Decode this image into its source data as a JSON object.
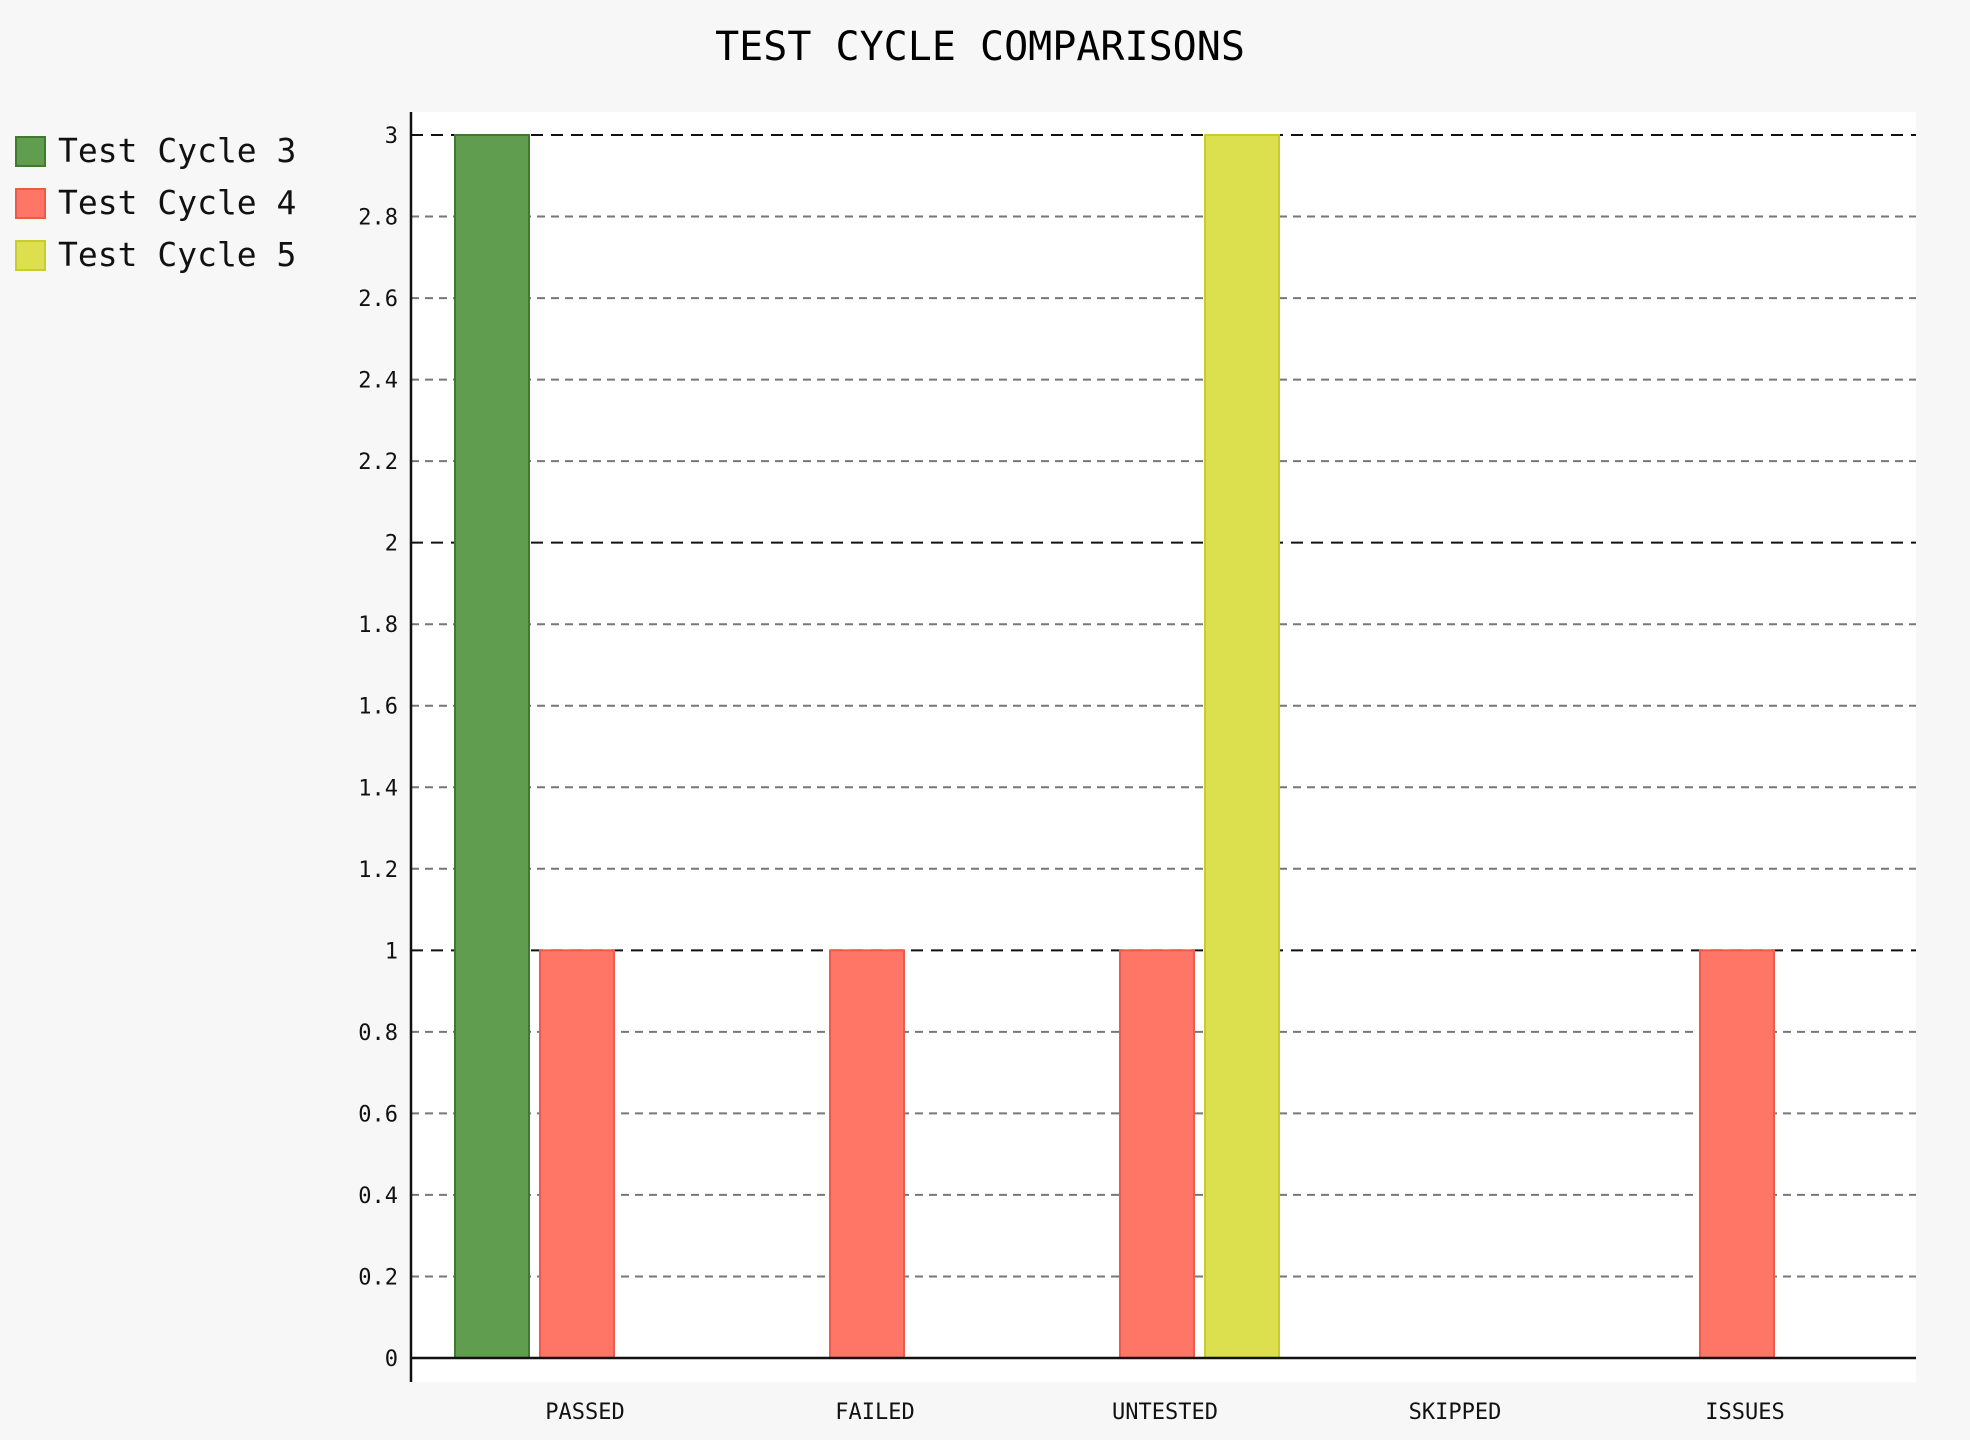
{
  "chart_data": {
    "type": "bar",
    "title": "TEST CYCLE COMPARISONS",
    "xlabel": "",
    "ylabel": "",
    "categories": [
      "PASSED",
      "FAILED",
      "UNTESTED",
      "SKIPPED",
      "ISSUES"
    ],
    "series": [
      {
        "name": "Test Cycle 3",
        "values": [
          3,
          0,
          0,
          0,
          0
        ],
        "color": "#609d4e",
        "stroke": "#3f7a30"
      },
      {
        "name": "Test Cycle 4",
        "values": [
          1,
          1,
          1,
          0,
          1
        ],
        "color": "#ff7566",
        "stroke": "#ee5a4a"
      },
      {
        "name": "Test Cycle 5",
        "values": [
          0,
          0,
          3,
          0,
          0
        ],
        "color": "#dce04f",
        "stroke": "#c8cc2e"
      }
    ],
    "ylim": [
      0,
      3
    ],
    "yticks": [
      0,
      0.2,
      0.4,
      0.6,
      0.8,
      1,
      1.2,
      1.4,
      1.6,
      1.8,
      2,
      2.2,
      2.4,
      2.6,
      2.8,
      3
    ],
    "ytick_labels": [
      "0",
      "0.2",
      "0.4",
      "0.6",
      "0.8",
      "1",
      "1.2",
      "1.4",
      "1.6",
      "1.8",
      "2",
      "2.2",
      "2.4",
      "2.6",
      "2.8",
      "3"
    ],
    "grid": true,
    "legend_position": "top-left"
  }
}
